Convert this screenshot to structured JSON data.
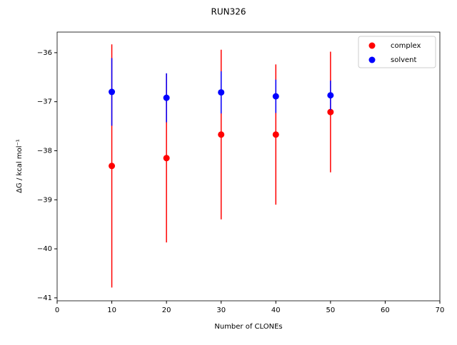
{
  "chart_data": {
    "type": "scatter",
    "title": "RUN326",
    "xlabel": "Number of CLONEs",
    "ylabel": "ΔG / kcal mol⁻¹",
    "xlim": [
      0,
      70
    ],
    "xticks": [
      0,
      10,
      20,
      30,
      40,
      50,
      60,
      70
    ],
    "ylim": [
      -41.06,
      -35.58
    ],
    "yticks": [
      {
        "value": -41,
        "label": "−41"
      },
      {
        "value": -40,
        "label": "−40"
      },
      {
        "value": -39,
        "label": "−39"
      },
      {
        "value": -38,
        "label": "−38"
      },
      {
        "value": -37,
        "label": "−37"
      },
      {
        "value": -36,
        "label": "−36"
      }
    ],
    "legend": "upper right",
    "series": [
      {
        "name": "complex",
        "color": "#ff0000",
        "x": [
          10,
          20,
          30,
          40,
          50
        ],
        "values": [
          -38.31,
          -38.15,
          -37.67,
          -37.67,
          -37.21
        ],
        "errors": [
          2.48,
          1.72,
          1.73,
          1.43,
          1.23
        ]
      },
      {
        "name": "solvent",
        "color": "#0000ff",
        "x": [
          10,
          20,
          30,
          40,
          50
        ],
        "values": [
          -36.8,
          -36.92,
          -36.81,
          -36.89,
          -36.87
        ],
        "errors": [
          0.69,
          0.5,
          0.43,
          0.34,
          0.3
        ]
      }
    ]
  }
}
